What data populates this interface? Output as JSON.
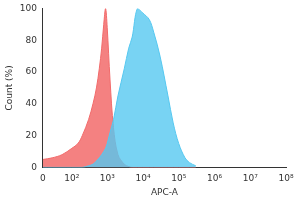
{
  "chart_data": {
    "type": "area",
    "x_label": "APC-A",
    "y_label": "Count (%)",
    "x": [
      0,
      20,
      50,
      100,
      150,
      200,
      300,
      400,
      500,
      600,
      700,
      800,
      900,
      1000,
      1200,
      1500,
      2000,
      3000,
      4000,
      5000,
      7000,
      10000,
      15000,
      20000,
      30000,
      50000,
      70000,
      100000,
      150000,
      200000,
      300000
    ],
    "series": [
      {
        "color": "#56c8f0",
        "values": [
          0,
          0,
          0,
          0,
          0,
          0,
          1,
          2,
          4,
          6,
          8,
          10,
          12,
          15,
          22,
          30,
          45,
          62,
          75,
          82,
          100,
          97,
          93,
          85,
          70,
          45,
          28,
          15,
          6,
          3,
          1
        ]
      },
      {
        "color": "#f26b6b",
        "values": [
          5,
          6,
          8,
          12,
          15,
          20,
          30,
          40,
          50,
          62,
          75,
          90,
          100,
          88,
          55,
          25,
          8,
          2,
          0.5,
          0,
          0,
          0,
          0,
          0,
          0,
          0,
          0,
          0,
          0,
          0,
          0
        ]
      }
    ],
    "xlim": [
      0,
      100000000
    ],
    "xticks": [
      0,
      {
        "value": 100,
        "label": "10²"
      },
      {
        "value": 1000,
        "label": "10³"
      },
      {
        "value": 10000,
        "label": "10⁴"
      },
      {
        "value": 100000,
        "label": "10⁵"
      },
      {
        "value": 1000000,
        "label": "10⁶"
      },
      {
        "value": 10000000,
        "label": "10⁷"
      },
      {
        "value": 100000000,
        "label": "10⁸"
      }
    ],
    "ylim": [
      0,
      100
    ],
    "yticks": [
      0,
      20,
      40,
      60,
      80,
      100
    ],
    "grid": false
  }
}
